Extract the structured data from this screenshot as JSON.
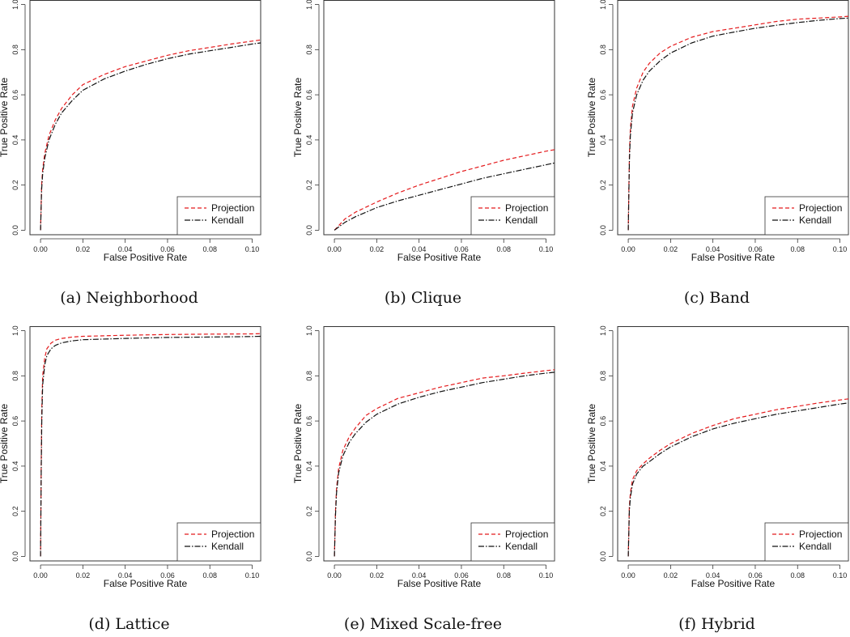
{
  "figure": {
    "legend_position": "bottom-right",
    "colors": {
      "projection": "#e41a1c",
      "kendall": "#111111"
    }
  },
  "chart_data": [
    {
      "type": "line",
      "caption": "(a) Neighborhood",
      "xlabel": "False Positive Rate",
      "ylabel": "True Positive Rate",
      "xlim": [
        -0.005,
        0.104
      ],
      "ylim": [
        -0.02,
        1.02
      ],
      "xticks": [
        0.0,
        0.02,
        0.04,
        0.06,
        0.08,
        0.1
      ],
      "xtick_labels": [
        "0.00",
        "0.02",
        "0.04",
        "0.06",
        "0.08",
        "0.10"
      ],
      "yticks": [
        0.0,
        0.2,
        0.4,
        0.6,
        0.8,
        1.0
      ],
      "ytick_labels": [
        "0.0",
        "0.2",
        "0.4",
        "0.6",
        "0.8",
        "1.0"
      ],
      "series": [
        {
          "name": "Projection",
          "style": "dashed",
          "x": [
            0,
            0.0005,
            0.001,
            0.002,
            0.004,
            0.007,
            0.01,
            0.015,
            0.02,
            0.03,
            0.04,
            0.05,
            0.06,
            0.07,
            0.08,
            0.09,
            0.1,
            0.104
          ],
          "y": [
            0,
            0.2,
            0.27,
            0.34,
            0.42,
            0.49,
            0.54,
            0.6,
            0.645,
            0.69,
            0.725,
            0.75,
            0.775,
            0.795,
            0.81,
            0.825,
            0.838,
            0.843
          ]
        },
        {
          "name": "Kendall",
          "style": "dotdash",
          "x": [
            0,
            0.0005,
            0.001,
            0.002,
            0.004,
            0.007,
            0.01,
            0.015,
            0.02,
            0.03,
            0.04,
            0.05,
            0.06,
            0.07,
            0.08,
            0.09,
            0.1,
            0.104
          ],
          "y": [
            0,
            0.18,
            0.25,
            0.32,
            0.4,
            0.47,
            0.52,
            0.575,
            0.62,
            0.67,
            0.705,
            0.735,
            0.76,
            0.78,
            0.795,
            0.81,
            0.825,
            0.83
          ]
        }
      ]
    },
    {
      "type": "line",
      "caption": "(b) Clique",
      "xlabel": "False Positive Rate",
      "ylabel": "True Positive Rate",
      "xlim": [
        -0.005,
        0.104
      ],
      "ylim": [
        -0.02,
        1.02
      ],
      "xticks": [
        0.0,
        0.02,
        0.04,
        0.06,
        0.08,
        0.1
      ],
      "xtick_labels": [
        "0.00",
        "0.02",
        "0.04",
        "0.06",
        "0.08",
        "0.10"
      ],
      "yticks": [
        0.0,
        0.2,
        0.4,
        0.6,
        0.8,
        1.0
      ],
      "ytick_labels": [
        "0.0",
        "0.2",
        "0.4",
        "0.6",
        "0.8",
        "1.0"
      ],
      "series": [
        {
          "name": "Projection",
          "style": "dashed",
          "x": [
            0,
            0.005,
            0.01,
            0.02,
            0.03,
            0.04,
            0.05,
            0.06,
            0.07,
            0.08,
            0.09,
            0.1,
            0.104
          ],
          "y": [
            0,
            0.05,
            0.08,
            0.125,
            0.165,
            0.2,
            0.23,
            0.26,
            0.285,
            0.31,
            0.33,
            0.35,
            0.357
          ]
        },
        {
          "name": "Kendall",
          "style": "dotdash",
          "x": [
            0,
            0.005,
            0.01,
            0.02,
            0.03,
            0.04,
            0.05,
            0.06,
            0.07,
            0.08,
            0.09,
            0.1,
            0.104
          ],
          "y": [
            0,
            0.035,
            0.06,
            0.1,
            0.13,
            0.155,
            0.18,
            0.205,
            0.23,
            0.25,
            0.27,
            0.29,
            0.298
          ]
        }
      ]
    },
    {
      "type": "line",
      "caption": "(c) Band",
      "xlabel": "False Positive Rate",
      "ylabel": "True Positive Rate",
      "xlim": [
        -0.005,
        0.104
      ],
      "ylim": [
        -0.02,
        1.02
      ],
      "xticks": [
        0.0,
        0.02,
        0.04,
        0.06,
        0.08,
        0.1
      ],
      "xtick_labels": [
        "0.00",
        "0.02",
        "0.04",
        "0.06",
        "0.08",
        "0.10"
      ],
      "yticks": [
        0.0,
        0.2,
        0.4,
        0.6,
        0.8,
        1.0
      ],
      "ytick_labels": [
        "0.0",
        "0.2",
        "0.4",
        "0.6",
        "0.8",
        "1.0"
      ],
      "series": [
        {
          "name": "Projection",
          "style": "dashed",
          "x": [
            0,
            0.0003,
            0.0006,
            0.001,
            0.002,
            0.004,
            0.007,
            0.01,
            0.015,
            0.02,
            0.03,
            0.04,
            0.05,
            0.06,
            0.07,
            0.08,
            0.09,
            0.1,
            0.104
          ],
          "y": [
            0,
            0.2,
            0.35,
            0.45,
            0.55,
            0.63,
            0.7,
            0.74,
            0.785,
            0.815,
            0.855,
            0.88,
            0.895,
            0.91,
            0.925,
            0.935,
            0.94,
            0.945,
            0.948
          ]
        },
        {
          "name": "Kendall",
          "style": "dotdash",
          "x": [
            0,
            0.0003,
            0.0006,
            0.001,
            0.002,
            0.004,
            0.007,
            0.01,
            0.015,
            0.02,
            0.03,
            0.04,
            0.05,
            0.06,
            0.07,
            0.08,
            0.09,
            0.1,
            0.104
          ],
          "y": [
            0,
            0.18,
            0.32,
            0.42,
            0.52,
            0.6,
            0.665,
            0.705,
            0.75,
            0.785,
            0.83,
            0.86,
            0.878,
            0.895,
            0.908,
            0.92,
            0.93,
            0.938,
            0.94
          ]
        }
      ]
    },
    {
      "type": "line",
      "caption": "(d) Lattice",
      "xlabel": "False Positive Rate",
      "ylabel": "True Positive Rate",
      "xlim": [
        -0.005,
        0.104
      ],
      "ylim": [
        -0.02,
        1.02
      ],
      "xticks": [
        0.0,
        0.02,
        0.04,
        0.06,
        0.08,
        0.1
      ],
      "xtick_labels": [
        "0.00",
        "0.02",
        "0.04",
        "0.06",
        "0.08",
        "0.10"
      ],
      "yticks": [
        0.0,
        0.2,
        0.4,
        0.6,
        0.8,
        1.0
      ],
      "ytick_labels": [
        "0.0",
        "0.2",
        "0.4",
        "0.6",
        "0.8",
        "1.0"
      ],
      "series": [
        {
          "name": "Projection",
          "style": "dashed",
          "x": [
            0,
            0.0003,
            0.0006,
            0.001,
            0.002,
            0.003,
            0.005,
            0.007,
            0.01,
            0.015,
            0.02,
            0.04,
            0.06,
            0.08,
            0.1,
            0.104
          ],
          "y": [
            0,
            0.4,
            0.65,
            0.8,
            0.88,
            0.92,
            0.945,
            0.958,
            0.966,
            0.972,
            0.975,
            0.98,
            0.983,
            0.985,
            0.986,
            0.987
          ]
        },
        {
          "name": "Kendall",
          "style": "dotdash",
          "x": [
            0,
            0.0003,
            0.0006,
            0.001,
            0.002,
            0.003,
            0.005,
            0.007,
            0.01,
            0.015,
            0.02,
            0.04,
            0.06,
            0.08,
            0.1,
            0.104
          ],
          "y": [
            0,
            0.37,
            0.6,
            0.76,
            0.85,
            0.89,
            0.92,
            0.935,
            0.946,
            0.955,
            0.96,
            0.966,
            0.97,
            0.972,
            0.974,
            0.975
          ]
        }
      ]
    },
    {
      "type": "line",
      "caption": "(e) Mixed Scale-free",
      "xlabel": "False Positive Rate",
      "ylabel": "True Positive Rate",
      "xlim": [
        -0.005,
        0.104
      ],
      "ylim": [
        -0.02,
        1.02
      ],
      "xticks": [
        0.0,
        0.02,
        0.04,
        0.06,
        0.08,
        0.1
      ],
      "xtick_labels": [
        "0.00",
        "0.02",
        "0.04",
        "0.06",
        "0.08",
        "0.10"
      ],
      "yticks": [
        0.0,
        0.2,
        0.4,
        0.6,
        0.8,
        1.0
      ],
      "ytick_labels": [
        "0.0",
        "0.2",
        "0.4",
        "0.6",
        "0.8",
        "1.0"
      ],
      "series": [
        {
          "name": "Projection",
          "style": "dashed",
          "x": [
            0,
            0.0005,
            0.001,
            0.002,
            0.004,
            0.007,
            0.01,
            0.015,
            0.02,
            0.03,
            0.04,
            0.05,
            0.06,
            0.07,
            0.08,
            0.09,
            0.1,
            0.104
          ],
          "y": [
            0,
            0.2,
            0.3,
            0.39,
            0.47,
            0.53,
            0.57,
            0.625,
            0.655,
            0.7,
            0.725,
            0.75,
            0.77,
            0.79,
            0.8,
            0.812,
            0.823,
            0.827
          ]
        },
        {
          "name": "Kendall",
          "style": "dotdash",
          "x": [
            0,
            0.0005,
            0.001,
            0.002,
            0.004,
            0.007,
            0.01,
            0.015,
            0.02,
            0.03,
            0.04,
            0.05,
            0.06,
            0.07,
            0.08,
            0.09,
            0.1,
            0.104
          ],
          "y": [
            0,
            0.18,
            0.28,
            0.37,
            0.445,
            0.505,
            0.545,
            0.595,
            0.63,
            0.675,
            0.705,
            0.73,
            0.75,
            0.77,
            0.785,
            0.8,
            0.812,
            0.816
          ]
        }
      ]
    },
    {
      "type": "line",
      "caption": "(f) Hybrid",
      "xlabel": "False Positive Rate",
      "ylabel": "True Positive Rate",
      "xlim": [
        -0.005,
        0.104
      ],
      "ylim": [
        -0.02,
        1.02
      ],
      "xticks": [
        0.0,
        0.02,
        0.04,
        0.06,
        0.08,
        0.1
      ],
      "xtick_labels": [
        "0.00",
        "0.02",
        "0.04",
        "0.06",
        "0.08",
        "0.10"
      ],
      "yticks": [
        0.0,
        0.2,
        0.4,
        0.6,
        0.8,
        1.0
      ],
      "ytick_labels": [
        "0.0",
        "0.2",
        "0.4",
        "0.6",
        "0.8",
        "1.0"
      ],
      "series": [
        {
          "name": "Projection",
          "style": "dashed",
          "x": [
            0,
            0.0005,
            0.001,
            0.002,
            0.004,
            0.007,
            0.01,
            0.015,
            0.02,
            0.03,
            0.04,
            0.05,
            0.06,
            0.07,
            0.08,
            0.09,
            0.1,
            0.104
          ],
          "y": [
            0,
            0.22,
            0.28,
            0.34,
            0.38,
            0.41,
            0.435,
            0.47,
            0.5,
            0.545,
            0.58,
            0.61,
            0.63,
            0.65,
            0.665,
            0.68,
            0.693,
            0.698
          ]
        },
        {
          "name": "Kendall",
          "style": "dotdash",
          "x": [
            0,
            0.0005,
            0.001,
            0.002,
            0.004,
            0.007,
            0.01,
            0.015,
            0.02,
            0.03,
            0.04,
            0.05,
            0.06,
            0.07,
            0.08,
            0.09,
            0.1,
            0.104
          ],
          "y": [
            0,
            0.2,
            0.26,
            0.32,
            0.365,
            0.4,
            0.42,
            0.455,
            0.485,
            0.53,
            0.565,
            0.59,
            0.61,
            0.63,
            0.645,
            0.66,
            0.675,
            0.68
          ]
        }
      ]
    }
  ]
}
